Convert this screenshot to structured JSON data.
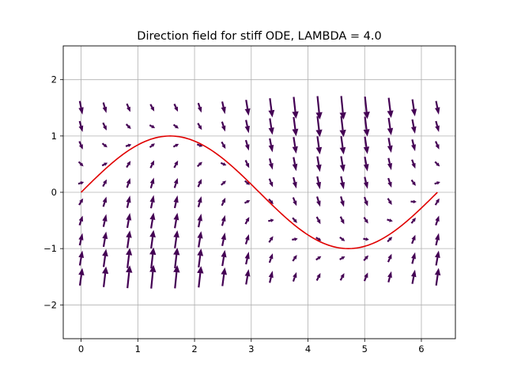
{
  "chart_data": {
    "type": "vector-field",
    "title": "Direction field for stiff ODE, LAMBDA = 4.0",
    "xlabel": "",
    "ylabel": "",
    "xlim": [
      -0.315,
      6.6
    ],
    "ylim": [
      -2.6,
      2.6
    ],
    "xticks": [
      0,
      1,
      2,
      3,
      4,
      5,
      6
    ],
    "yticks": [
      -2,
      -1,
      0,
      1,
      2
    ],
    "grid": true,
    "field": {
      "x_start": 0,
      "x_end": 6.283,
      "x_count": 16,
      "y_start": -1.5,
      "y_end": 1.5,
      "y_count": 10,
      "lambda": 4.0,
      "equation": "dy/dx = -lambda*(y - sin x) + cos x",
      "arrow_color": "#440154"
    },
    "solution": {
      "color": "#e00000",
      "curve": "y = sin x",
      "x_start": 0,
      "x_end": 6.283
    }
  }
}
